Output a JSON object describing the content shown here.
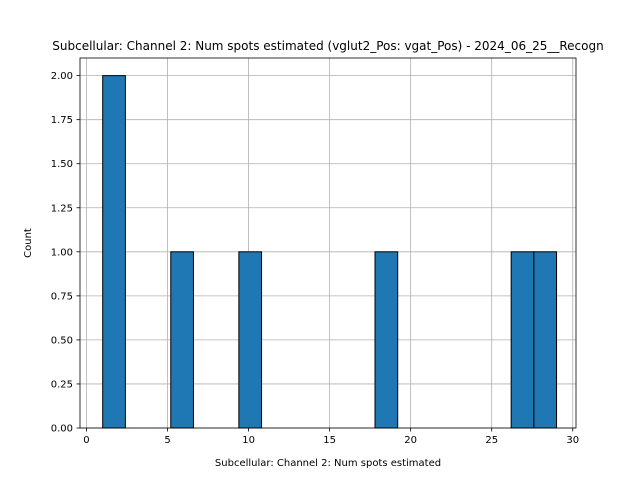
{
  "chart_data": {
    "type": "bar",
    "title": "Subcellular: Channel 2: Num spots estimated (vglut2_Pos: vgat_Pos) - 2024_06_25__Recogn",
    "xlabel": "Subcellular: Channel 2: Num spots estimated",
    "ylabel": "Count",
    "xlim": [
      -0.4,
      30.2
    ],
    "ylim": [
      0,
      2.1
    ],
    "x_ticks": [
      0,
      5,
      10,
      15,
      20,
      25,
      30
    ],
    "y_ticks": [
      0.0,
      0.25,
      0.5,
      0.75,
      1.0,
      1.25,
      1.5,
      1.75,
      2.0
    ],
    "x_tick_labels": [
      "0",
      "5",
      "10",
      "15",
      "20",
      "25",
      "30"
    ],
    "y_tick_labels": [
      "0.00",
      "0.25",
      "0.50",
      "0.75",
      "1.00",
      "1.25",
      "1.50",
      "1.75",
      "2.00"
    ],
    "grid": true,
    "bars": [
      {
        "x0": 1.0,
        "x1": 2.4,
        "count": 2
      },
      {
        "x0": 5.2,
        "x1": 6.6,
        "count": 1
      },
      {
        "x0": 9.4,
        "x1": 10.8,
        "count": 1
      },
      {
        "x0": 17.8,
        "x1": 19.2,
        "count": 1
      },
      {
        "x0": 26.2,
        "x1": 27.6,
        "count": 1
      },
      {
        "x0": 27.6,
        "x1": 29.0,
        "count": 1
      }
    ],
    "colors": {
      "bar_fill": "#1f77b4",
      "bar_edge": "#000000",
      "grid": "#b0b0b0"
    }
  }
}
